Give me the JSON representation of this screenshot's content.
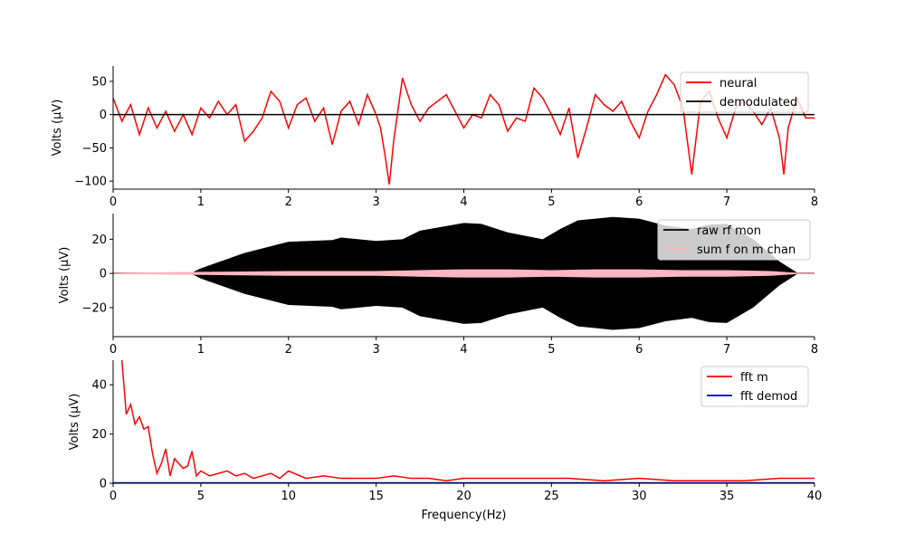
{
  "chart_data": [
    {
      "type": "line",
      "xlabel": "",
      "ylabel": "Volts (μV)",
      "xlim": [
        0,
        8
      ],
      "ylim": [
        -112,
        73
      ],
      "xticks": [
        0,
        1,
        2,
        3,
        4,
        5,
        6,
        7,
        8
      ],
      "yticks": [
        50,
        0,
        -50,
        -100
      ],
      "legend_position": "top-right",
      "series": [
        {
          "name": "neural",
          "color": "#ff0000",
          "x": [
            0,
            0.1,
            0.2,
            0.3,
            0.4,
            0.5,
            0.6,
            0.7,
            0.8,
            0.9,
            1.0,
            1.1,
            1.2,
            1.3,
            1.4,
            1.5,
            1.6,
            1.7,
            1.8,
            1.9,
            2.0,
            2.1,
            2.2,
            2.3,
            2.4,
            2.5,
            2.6,
            2.7,
            2.8,
            2.9,
            3.0,
            3.05,
            3.1,
            3.15,
            3.2,
            3.3,
            3.35,
            3.4,
            3.5,
            3.6,
            3.7,
            3.8,
            3.9,
            4.0,
            4.1,
            4.2,
            4.3,
            4.4,
            4.5,
            4.6,
            4.7,
            4.8,
            4.9,
            5.0,
            5.1,
            5.2,
            5.3,
            5.4,
            5.5,
            5.6,
            5.7,
            5.8,
            5.9,
            6.0,
            6.1,
            6.2,
            6.3,
            6.4,
            6.5,
            6.6,
            6.7,
            6.8,
            6.9,
            7.0,
            7.1,
            7.2,
            7.3,
            7.4,
            7.5,
            7.6,
            7.65,
            7.7,
            7.8,
            7.9,
            8.0
          ],
          "values": [
            25,
            -10,
            15,
            -30,
            10,
            -20,
            5,
            -25,
            0,
            -30,
            10,
            -5,
            20,
            0,
            15,
            -40,
            -25,
            -5,
            35,
            20,
            -20,
            15,
            25,
            -10,
            10,
            -45,
            5,
            20,
            -15,
            30,
            0,
            -20,
            -60,
            -105,
            -40,
            55,
            35,
            15,
            -10,
            10,
            20,
            30,
            5,
            -20,
            0,
            -5,
            30,
            15,
            -25,
            -5,
            -10,
            40,
            25,
            0,
            -30,
            10,
            -65,
            -20,
            30,
            15,
            5,
            20,
            -10,
            -35,
            5,
            30,
            60,
            45,
            10,
            -90,
            20,
            35,
            -5,
            -35,
            10,
            20,
            5,
            -15,
            10,
            -35,
            -90,
            -20,
            25,
            -5,
            -5
          ]
        },
        {
          "name": "demodulated",
          "color": "#000000",
          "x": [
            0,
            8
          ],
          "values": [
            0,
            0
          ]
        }
      ]
    },
    {
      "type": "area",
      "xlabel": "",
      "ylabel": "Volts (μV)",
      "xlim": [
        0,
        8
      ],
      "ylim": [
        -37,
        35
      ],
      "xticks": [
        0,
        1,
        2,
        3,
        4,
        5,
        6,
        7,
        8
      ],
      "yticks": [
        20,
        0,
        -20
      ],
      "legend_position": "top-right",
      "series": [
        {
          "name": "raw rf mon",
          "color": "#000000",
          "x": [
            0,
            0.9,
            1.0,
            1.5,
            2.0,
            2.5,
            2.6,
            3.0,
            3.3,
            3.5,
            4.0,
            4.2,
            4.5,
            4.9,
            5.1,
            5.3,
            5.5,
            5.7,
            6.0,
            6.3,
            6.6,
            6.8,
            7.0,
            7.3,
            7.6,
            7.8,
            8.0
          ],
          "values": [
            0.5,
            0.5,
            3,
            12,
            18.5,
            19.5,
            21,
            19,
            20,
            25,
            29.5,
            29,
            24,
            20,
            26,
            31,
            32,
            33,
            32,
            28,
            26,
            28.5,
            29,
            20,
            7,
            0.5,
            0.5
          ]
        },
        {
          "name": "sum f on m chan",
          "color": "#ffb6c1",
          "x": [
            0,
            1,
            2,
            3,
            3.5,
            4,
            4.5,
            5,
            5.5,
            6,
            6.5,
            7,
            7.5,
            7.8,
            8
          ],
          "values": [
            0,
            0.5,
            1,
            1,
            1.5,
            2,
            2,
            1.5,
            2,
            2,
            1.5,
            1.5,
            1,
            0,
            0
          ]
        }
      ]
    },
    {
      "type": "line",
      "xlabel": "Frequency(Hz)",
      "ylabel": "Volts (μV)",
      "xlim": [
        0,
        40
      ],
      "ylim": [
        0,
        50
      ],
      "xticks": [
        0,
        5,
        10,
        15,
        20,
        25,
        30,
        35,
        40
      ],
      "yticks": [
        0,
        20,
        40
      ],
      "legend_position": "top-right",
      "series": [
        {
          "name": "fft m",
          "color": "#ff0000",
          "x": [
            0.5,
            0.75,
            1.0,
            1.25,
            1.5,
            1.75,
            2.0,
            2.25,
            2.5,
            2.75,
            3.0,
            3.25,
            3.5,
            3.75,
            4.0,
            4.25,
            4.5,
            4.75,
            5.0,
            5.5,
            6.0,
            6.5,
            7.0,
            7.5,
            8.0,
            8.5,
            9.0,
            9.5,
            10.0,
            11,
            12,
            13,
            14,
            15,
            16,
            17,
            18,
            19,
            20,
            22,
            24,
            26,
            28,
            30,
            32,
            34,
            36,
            38,
            40
          ],
          "values": [
            50,
            28,
            32,
            24,
            27,
            22,
            23,
            12,
            4,
            8,
            14,
            3,
            10,
            8,
            6,
            7,
            13,
            3,
            5,
            3,
            4,
            5,
            3,
            4,
            2,
            3,
            4,
            2,
            5,
            2,
            3,
            2,
            2,
            2,
            3,
            2,
            2,
            1,
            2,
            2,
            2,
            2,
            1,
            2,
            1,
            1,
            1,
            2,
            2
          ]
        },
        {
          "name": "fft demod",
          "color": "#0000cc",
          "x": [
            0,
            40
          ],
          "values": [
            0.2,
            0.2
          ]
        }
      ]
    }
  ]
}
